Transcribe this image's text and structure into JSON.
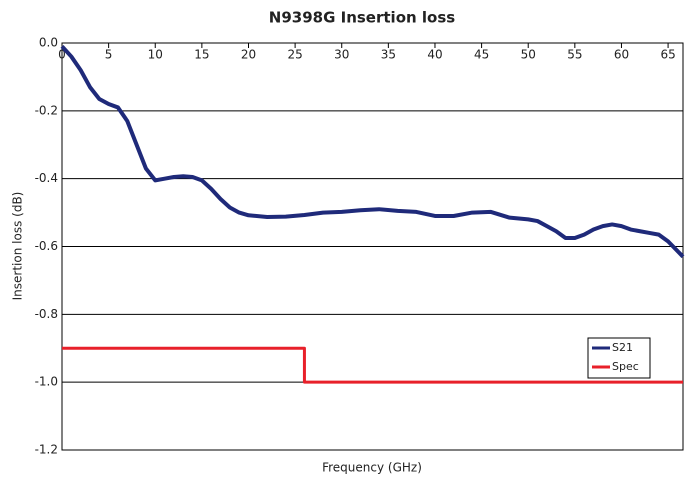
{
  "chart_data": {
    "type": "line",
    "title": "N9398G Insertion loss",
    "x_label": "Frequency (GHz)",
    "y_label": "Insertion loss (dB)",
    "xlim": [
      0,
      66.6
    ],
    "xticks": [
      0,
      5,
      10,
      15,
      20,
      25,
      30,
      35,
      40,
      45,
      50,
      55,
      60,
      65
    ],
    "ylim": [
      -1.2,
      0
    ],
    "yticks": [
      {
        "value": 0,
        "label": "0.0"
      },
      -0.2,
      -0.4,
      -0.6,
      -0.8,
      {
        "value": -1,
        "label": "-1.0"
      },
      -1.2
    ],
    "grid": true,
    "legend_position": "lower right",
    "series": [
      {
        "name": "S21",
        "color": "#1f2a7a",
        "x": [
          0,
          1,
          2,
          3,
          4,
          5,
          6,
          7,
          8,
          9,
          10,
          11,
          12,
          13,
          14,
          15,
          16,
          17,
          18,
          19,
          20,
          22,
          24,
          26,
          28,
          30,
          32,
          34,
          36,
          38,
          40,
          42,
          44,
          46,
          48,
          50,
          51,
          52,
          53,
          54,
          55,
          56,
          57,
          58,
          59,
          60,
          61,
          62,
          63,
          64,
          65,
          66.6
        ],
        "values": [
          -0.01,
          -0.04,
          -0.08,
          -0.13,
          -0.165,
          -0.18,
          -0.19,
          -0.23,
          -0.3,
          -0.37,
          -0.405,
          -0.4,
          -0.395,
          -0.393,
          -0.395,
          -0.405,
          -0.43,
          -0.46,
          -0.485,
          -0.5,
          -0.508,
          -0.513,
          -0.512,
          -0.507,
          -0.5,
          -0.498,
          -0.493,
          -0.49,
          -0.495,
          -0.498,
          -0.51,
          -0.51,
          -0.5,
          -0.498,
          -0.515,
          -0.52,
          -0.525,
          -0.54,
          -0.555,
          -0.575,
          -0.575,
          -0.565,
          -0.55,
          -0.54,
          -0.535,
          -0.54,
          -0.55,
          -0.555,
          -0.56,
          -0.565,
          -0.585,
          -0.63
        ]
      },
      {
        "name": "Spec",
        "color": "#e8202a",
        "x": [
          0,
          26,
          26,
          66.6
        ],
        "values": [
          -0.9,
          -0.9,
          -1,
          -1
        ]
      }
    ]
  }
}
